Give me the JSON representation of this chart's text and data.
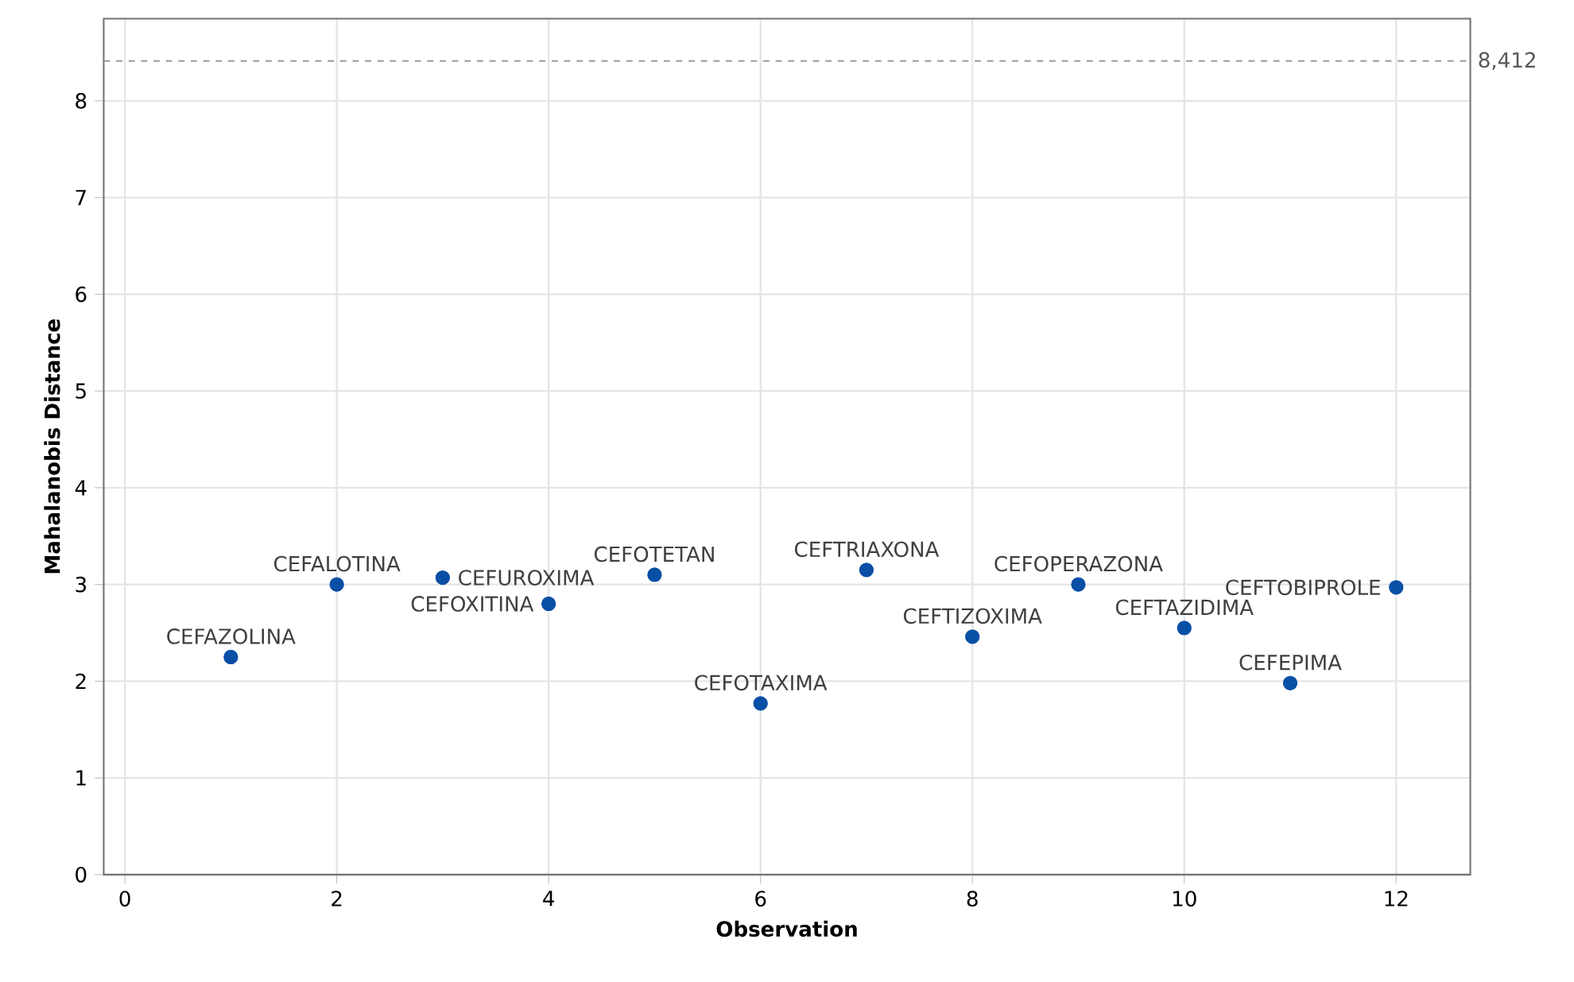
{
  "chart_data": {
    "type": "scatter",
    "xlabel": "Observation",
    "ylabel": "Mahalanobis Distance",
    "x": [
      1,
      2,
      3,
      4,
      5,
      6,
      7,
      8,
      9,
      10,
      11,
      12
    ],
    "values": [
      2.25,
      3.0,
      3.07,
      2.8,
      3.1,
      1.77,
      3.15,
      2.46,
      3.0,
      2.55,
      1.98,
      2.97
    ],
    "color": "#0a4fa6",
    "marker": "circle",
    "grid": true,
    "xlim": [
      -0.2,
      12.7
    ],
    "ylim": [
      0,
      8.85
    ],
    "xticks": [
      0,
      2,
      4,
      6,
      8,
      10,
      12
    ],
    "yticks": [
      0,
      1,
      2,
      3,
      4,
      5,
      6,
      7,
      8
    ],
    "ref_lines": [
      {
        "axis": "y",
        "value": 8.412,
        "label": "8,412",
        "color": "#999999",
        "line_style": "dashed"
      }
    ],
    "annotations": [
      {
        "text": "CEFAZOLINA",
        "x": 1,
        "y": 2.25
      },
      {
        "text": "CEFALOTINA",
        "x": 2,
        "y": 3.0
      },
      {
        "text": "CEFUROXIMA",
        "x": 3,
        "y": 3.07
      },
      {
        "text": "CEFOXITINA",
        "x": 4,
        "y": 2.8
      },
      {
        "text": "CEFOTETAN",
        "x": 5,
        "y": 3.1
      },
      {
        "text": "CEFOTAXIMA",
        "x": 6,
        "y": 1.77
      },
      {
        "text": "CEFTRIAXONA",
        "x": 7,
        "y": 3.15
      },
      {
        "text": "CEFTIZOXIMA",
        "x": 8,
        "y": 2.46
      },
      {
        "text": "CEFOPERAZONA",
        "x": 9,
        "y": 3.0
      },
      {
        "text": "CEFTAZIDIMA",
        "x": 10,
        "y": 2.55
      },
      {
        "text": "CEFEPIMA",
        "x": 11,
        "y": 1.98
      },
      {
        "text": "CEFTOBIPROLE",
        "x": 12,
        "y": 2.97
      }
    ]
  }
}
